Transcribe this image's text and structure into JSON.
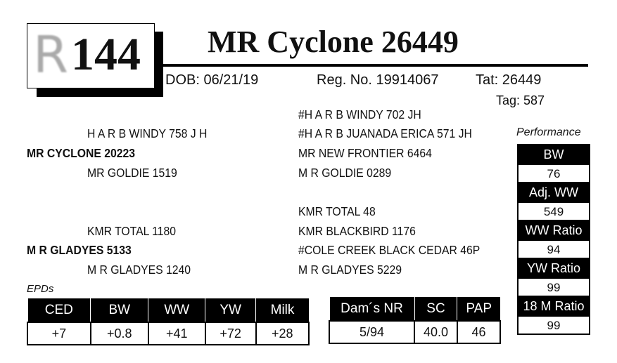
{
  "lot": {
    "logo_letter": "R",
    "number": "144"
  },
  "title": "MR Cyclone 26449",
  "info": {
    "dob": "DOB: 06/21/19",
    "reg": "Reg. No. 19914067",
    "tattoo": "Tat: 26449",
    "tag": "Tag: 587"
  },
  "pedigree": {
    "sire_sire": "H A R B WINDY 758 J H",
    "sire": "MR CYCLONE 20223",
    "sire_dam": "MR GOLDIE 1519",
    "ssire_sire": "#H A R B WINDY 702 JH",
    "ssire_dam": "#H A R B JUANADA ERICA 571 JH",
    "sdam_sire": "MR NEW FRONTIER 6464",
    "sdam_dam": "M R GOLDIE 0289",
    "dam_sire": "KMR TOTAL  1180",
    "dam": "M R GLADYES 5133",
    "dam_dam": "M R GLADYES 1240",
    "dsire_sire": "KMR TOTAL 48",
    "dsire_dam": "KMR  BLACKBIRD  1176",
    "ddam_sire": "#COLE CREEK BLACK CEDAR 46P",
    "ddam_dam": "M R GLADYES 5229"
  },
  "performance": {
    "label": "Performance",
    "items": [
      {
        "label": "BW",
        "value": "76"
      },
      {
        "label": "Adj. WW",
        "value": "549"
      },
      {
        "label": "WW Ratio",
        "value": "94"
      },
      {
        "label": "YW Ratio",
        "value": "99"
      },
      {
        "label": "18 M Ratio",
        "value": "99"
      }
    ]
  },
  "epds": {
    "label": "EPDs",
    "headers": [
      "CED",
      "BW",
      "WW",
      "YW",
      "Milk"
    ],
    "values": [
      "+7",
      "+0.8",
      "+41",
      "+72",
      "+28"
    ]
  },
  "dam_table": {
    "headers": [
      "Dam´s NR",
      "SC",
      "PAP"
    ],
    "values": [
      "5/94",
      "40.0",
      "46"
    ]
  }
}
